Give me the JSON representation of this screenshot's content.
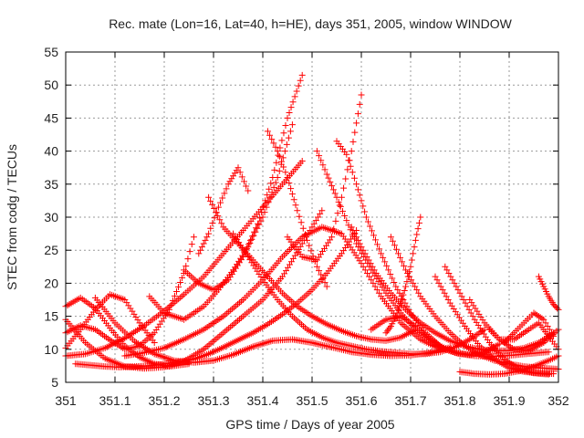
{
  "chart_data": {
    "type": "scatter",
    "title": "Rec. mate (Lon=16, Lat=40, h=HE), days 351, 2005, window WINDOW",
    "xlabel": "GPS time / Days of year 2005",
    "ylabel": "STEC from codg / TECUs",
    "xlim": [
      351,
      352
    ],
    "ylim": [
      5,
      55
    ],
    "x_ticks": [
      "351",
      "351.1",
      "351.2",
      "351.3",
      "351.4",
      "351.5",
      "351.6",
      "351.7",
      "351.8",
      "351.9",
      "352"
    ],
    "y_ticks": [
      "5",
      "10",
      "15",
      "20",
      "25",
      "30",
      "35",
      "40",
      "45",
      "50",
      "55"
    ],
    "grid": true,
    "legend": "none",
    "marker": "plus",
    "color": "#ff0000",
    "series": [
      {
        "x": [
          351.0,
          351.03,
          351.06,
          351.09,
          351.12,
          351.15,
          351.18,
          351.21,
          351.25
        ],
        "y": [
          16.5,
          17.8,
          16.2,
          13.2,
          10.5,
          8.8,
          7.8,
          7.4,
          7.8
        ]
      },
      {
        "x": [
          351.0,
          351.03,
          351.06,
          351.09,
          351.12,
          351.15,
          351.18
        ],
        "y": [
          10.2,
          13.0,
          16.0,
          18.3,
          17.5,
          14.0,
          11.0
        ]
      },
      {
        "x": [
          351.0,
          351.04,
          351.08,
          351.12,
          351.16,
          351.2,
          351.24,
          351.28,
          351.32,
          351.36,
          351.4,
          351.44,
          351.48,
          351.52
        ],
        "y": [
          14.5,
          11.0,
          8.6,
          7.4,
          7.1,
          7.3,
          8.2,
          10.0,
          12.5,
          15.0,
          17.5,
          21.0,
          26.0,
          31.0
        ]
      },
      {
        "x": [
          351.0,
          351.04,
          351.08,
          351.12,
          351.16,
          351.2,
          351.24,
          351.28,
          351.32,
          351.36,
          351.4,
          351.44,
          351.48
        ],
        "y": [
          9.0,
          9.3,
          10.2,
          11.7,
          13.6,
          15.8,
          18.3,
          21.0,
          24.5,
          28.0,
          31.5,
          35.0,
          38.5
        ]
      },
      {
        "x": [
          351.0,
          351.03,
          351.06,
          351.09,
          351.12,
          351.15,
          351.18,
          351.21,
          351.24,
          351.26
        ],
        "y": [
          12.5,
          13.6,
          13.0,
          11.4,
          10.0,
          10.5,
          12.5,
          16.0,
          21.5,
          27.0
        ]
      },
      {
        "x": [
          351.02,
          351.05,
          351.08,
          351.11,
          351.14,
          351.17,
          351.2,
          351.23,
          351.26,
          351.29,
          351.32,
          351.35,
          351.38,
          351.41,
          351.44,
          351.47,
          351.5,
          351.53,
          351.56,
          351.59
        ],
        "y": [
          7.8,
          7.6,
          7.4,
          7.3,
          7.4,
          7.5,
          7.8,
          8.1,
          8.5,
          9.3,
          10.3,
          11.4,
          12.5,
          13.8,
          15.3,
          17.0,
          19.0,
          21.5,
          24.5,
          28.0
        ]
      },
      {
        "x": [
          351.06,
          351.1,
          351.14,
          351.18,
          351.22,
          351.26,
          351.3,
          351.34,
          351.38,
          351.42,
          351.46,
          351.5,
          351.54,
          351.58,
          351.62,
          351.66,
          351.7,
          351.74,
          351.78
        ],
        "y": [
          17.8,
          14.0,
          11.2,
          9.3,
          8.3,
          8.0,
          8.3,
          9.2,
          10.4,
          11.3,
          11.5,
          11.0,
          10.3,
          9.6,
          9.2,
          9.0,
          9.1,
          9.5,
          10.3
        ]
      },
      {
        "x": [
          351.12,
          351.16,
          351.2,
          351.24,
          351.28,
          351.32,
          351.36,
          351.4,
          351.44,
          351.48,
          351.52,
          351.56,
          351.6,
          351.64,
          351.68,
          351.72,
          351.76
        ],
        "y": [
          9.0,
          9.5,
          10.2,
          11.5,
          13.0,
          15.0,
          17.5,
          20.5,
          24.0,
          27.0,
          28.5,
          27.5,
          23.0,
          18.0,
          14.0,
          11.5,
          10.0
        ]
      },
      {
        "x": [
          351.17,
          351.2,
          351.24,
          351.28,
          351.31,
          351.34,
          351.37,
          351.4,
          351.43,
          351.46
        ],
        "y": [
          18.0,
          15.5,
          14.5,
          16.5,
          19.0,
          22.0,
          25.5,
          30.0,
          36.0,
          44.0
        ]
      },
      {
        "x": [
          351.24,
          351.27,
          351.3,
          351.33,
          351.36,
          351.39,
          351.42,
          351.45,
          351.48
        ],
        "y": [
          22.0,
          20.0,
          19.0,
          20.5,
          24.0,
          29.0,
          36.0,
          45.0,
          51.5
        ]
      },
      {
        "x": [
          351.27,
          351.29,
          351.31,
          351.33,
          351.35,
          351.37
        ],
        "y": [
          24.5,
          27.5,
          31.5,
          35.0,
          37.5,
          34.0
        ]
      },
      {
        "x": [
          351.29,
          351.32,
          351.35,
          351.38,
          351.41,
          351.44,
          351.47,
          351.5,
          351.53,
          351.56,
          351.59,
          351.62,
          351.65,
          351.68,
          351.71
        ],
        "y": [
          33.0,
          28.5,
          26.0,
          23.5,
          21.0,
          18.5,
          16.5,
          15.0,
          13.8,
          12.8,
          12.0,
          11.5,
          11.3,
          11.8,
          13.0
        ]
      },
      {
        "x": [
          351.34,
          351.37,
          351.4,
          351.43,
          351.46,
          351.49,
          351.52,
          351.55,
          351.58,
          351.61,
          351.64,
          351.67,
          351.7,
          351.73,
          351.76,
          351.79,
          351.82,
          351.85
        ],
        "y": [
          27.5,
          24.0,
          20.5,
          17.5,
          15.0,
          13.0,
          11.8,
          11.0,
          10.5,
          10.0,
          9.7,
          9.5,
          9.3,
          9.3,
          9.6,
          10.3,
          11.5,
          13.0
        ]
      },
      {
        "x": [
          351.41,
          351.43,
          351.45,
          351.47,
          351.49,
          351.51,
          351.53
        ],
        "y": [
          43.0,
          40.0,
          36.0,
          31.0,
          26.5,
          22.5,
          19.5
        ]
      },
      {
        "x": [
          351.51,
          351.53,
          351.55,
          351.57,
          351.59,
          351.62,
          351.65,
          351.68,
          351.71,
          351.74,
          351.77,
          351.8
        ],
        "y": [
          40.0,
          36.5,
          33.0,
          29.5,
          26.0,
          22.0,
          18.5,
          15.5,
          13.0,
          11.2,
          10.0,
          9.3
        ]
      },
      {
        "x": [
          351.55,
          351.57,
          351.59,
          351.61,
          351.64,
          351.67,
          351.7,
          351.73,
          351.76,
          351.79,
          351.82,
          351.85,
          351.88
        ],
        "y": [
          41.5,
          39.5,
          35.0,
          30.0,
          24.5,
          19.5,
          15.5,
          12.5,
          10.5,
          9.5,
          9.2,
          9.6,
          10.8
        ]
      },
      {
        "x": [
          351.45,
          351.48,
          351.51,
          351.54,
          351.56,
          351.58,
          351.6
        ],
        "y": [
          27.0,
          24.0,
          23.5,
          27.0,
          33.0,
          40.0,
          48.5
        ]
      },
      {
        "x": [
          351.58,
          351.6,
          351.63,
          351.66,
          351.69,
          351.72,
          351.75,
          351.78,
          351.81,
          351.84,
          351.87,
          351.9,
          351.93,
          351.96,
          351.99
        ],
        "y": [
          28.5,
          25.5,
          21.5,
          18.5,
          16.0,
          14.0,
          12.5,
          11.3,
          10.5,
          10.0,
          9.8,
          9.8,
          10.2,
          11.0,
          12.5
        ]
      },
      {
        "x": [
          351.62,
          351.65,
          351.68,
          351.71,
          351.74,
          351.77,
          351.8,
          351.83,
          351.86,
          351.89,
          351.92,
          351.95,
          351.98
        ],
        "y": [
          13.0,
          14.5,
          15.0,
          13.5,
          11.5,
          10.0,
          9.3,
          9.0,
          8.9,
          9.0,
          9.2,
          9.4,
          9.6
        ]
      },
      {
        "x": [
          351.66,
          351.69,
          351.72,
          351.75,
          351.78,
          351.81,
          351.84,
          351.87,
          351.9,
          351.93,
          351.96,
          352.0
        ],
        "y": [
          27.0,
          22.0,
          18.0,
          15.0,
          12.5,
          10.5,
          9.2,
          8.3,
          7.8,
          7.4,
          7.2,
          7.0
        ]
      },
      {
        "x": [
          351.72,
          351.71,
          351.7,
          351.69,
          351.68,
          351.67,
          351.66,
          351.65
        ],
        "y": [
          30.0,
          26.5,
          22.5,
          19.5,
          17.0,
          15.0,
          13.5,
          12.5
        ]
      },
      {
        "x": [
          351.75,
          351.78,
          351.81,
          351.84,
          351.87,
          351.9,
          351.93,
          351.96,
          351.99
        ],
        "y": [
          21.0,
          17.0,
          13.5,
          10.5,
          8.5,
          7.2,
          6.6,
          6.4,
          6.3
        ]
      },
      {
        "x": [
          351.77,
          351.8,
          351.83,
          351.86,
          351.89,
          351.92,
          351.95,
          351.98
        ],
        "y": [
          22.5,
          18.5,
          14.5,
          11.0,
          8.5,
          7.0,
          6.4,
          6.2
        ]
      },
      {
        "x": [
          351.8,
          351.83,
          351.86,
          351.89,
          351.92,
          351.95,
          351.98,
          352.0
        ],
        "y": [
          6.6,
          6.3,
          6.2,
          6.3,
          6.7,
          7.4,
          8.3,
          9.0
        ]
      },
      {
        "x": [
          351.82,
          351.85,
          351.88,
          351.91,
          351.94,
          351.97,
          352.0
        ],
        "y": [
          17.5,
          14.0,
          11.5,
          10.0,
          9.8,
          11.0,
          13.0
        ]
      },
      {
        "x": [
          351.86,
          351.88,
          351.91,
          351.94,
          351.96,
          351.98,
          352.0
        ],
        "y": [
          13.0,
          11.5,
          11.5,
          13.0,
          14.0,
          12.0,
          10.0
        ]
      },
      {
        "x": [
          351.96,
          351.97,
          351.98,
          351.99,
          352.0
        ],
        "y": [
          21.0,
          19.5,
          18.0,
          16.8,
          16.0
        ]
      },
      {
        "x": [
          351.89,
          351.91,
          351.93,
          351.95,
          351.97,
          351.99
        ],
        "y": [
          11.0,
          12.5,
          14.0,
          15.5,
          14.5,
          12.0
        ]
      }
    ]
  }
}
